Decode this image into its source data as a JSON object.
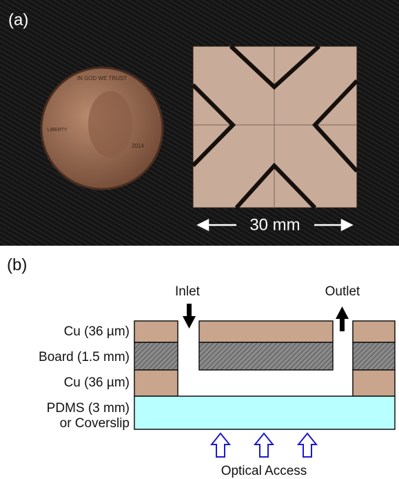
{
  "panel_a": {
    "label": "(a)",
    "scale_label": "30 mm",
    "coin_texts": [
      "IN GOD WE TRUST",
      "LIBERTY",
      "2014"
    ]
  },
  "panel_b": {
    "label": "(b)",
    "inlet": "Inlet",
    "outlet": "Outlet",
    "layers": [
      "Cu (36 µm)",
      "Board (1.5 mm)",
      "Cu (36 µm)",
      "PDMS (3 mm)",
      "or Coverslip"
    ],
    "optical_access": "Optical Access"
  }
}
